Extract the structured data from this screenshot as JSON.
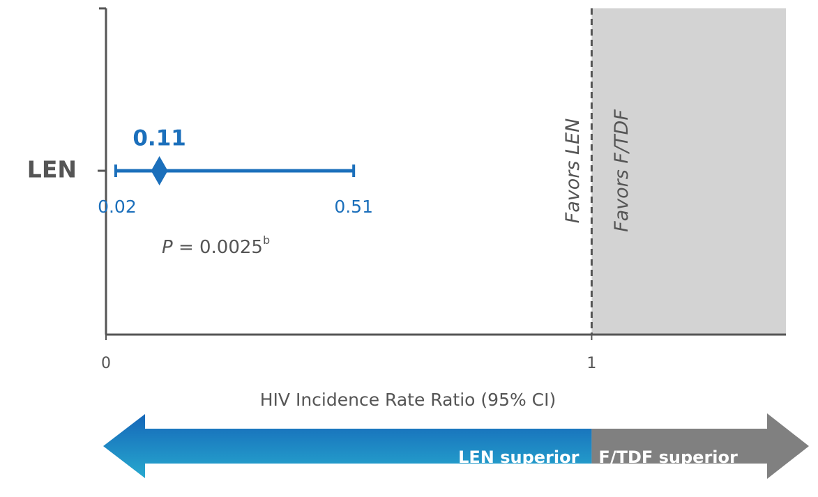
{
  "chart_data": {
    "type": "forest",
    "categories": [
      "LEN"
    ],
    "values": [
      0.11
    ],
    "ci_low": [
      0.02
    ],
    "ci_high": [
      0.51
    ],
    "color": "#1b6fbb",
    "xlim": [
      0,
      1.4
    ],
    "xticks": [
      0,
      1
    ],
    "x_label": "HIV Incidence Rate Ratio (95% CI)",
    "reference_line": 1,
    "favors_left": "Favors LEN",
    "favors_right": "Favors F/TDF",
    "annotation": {
      "italic": "P",
      "text": " = 0.0025",
      "superscript": "b"
    },
    "arrow_left": "LEN superior",
    "arrow_right": "F/TDF superior"
  }
}
